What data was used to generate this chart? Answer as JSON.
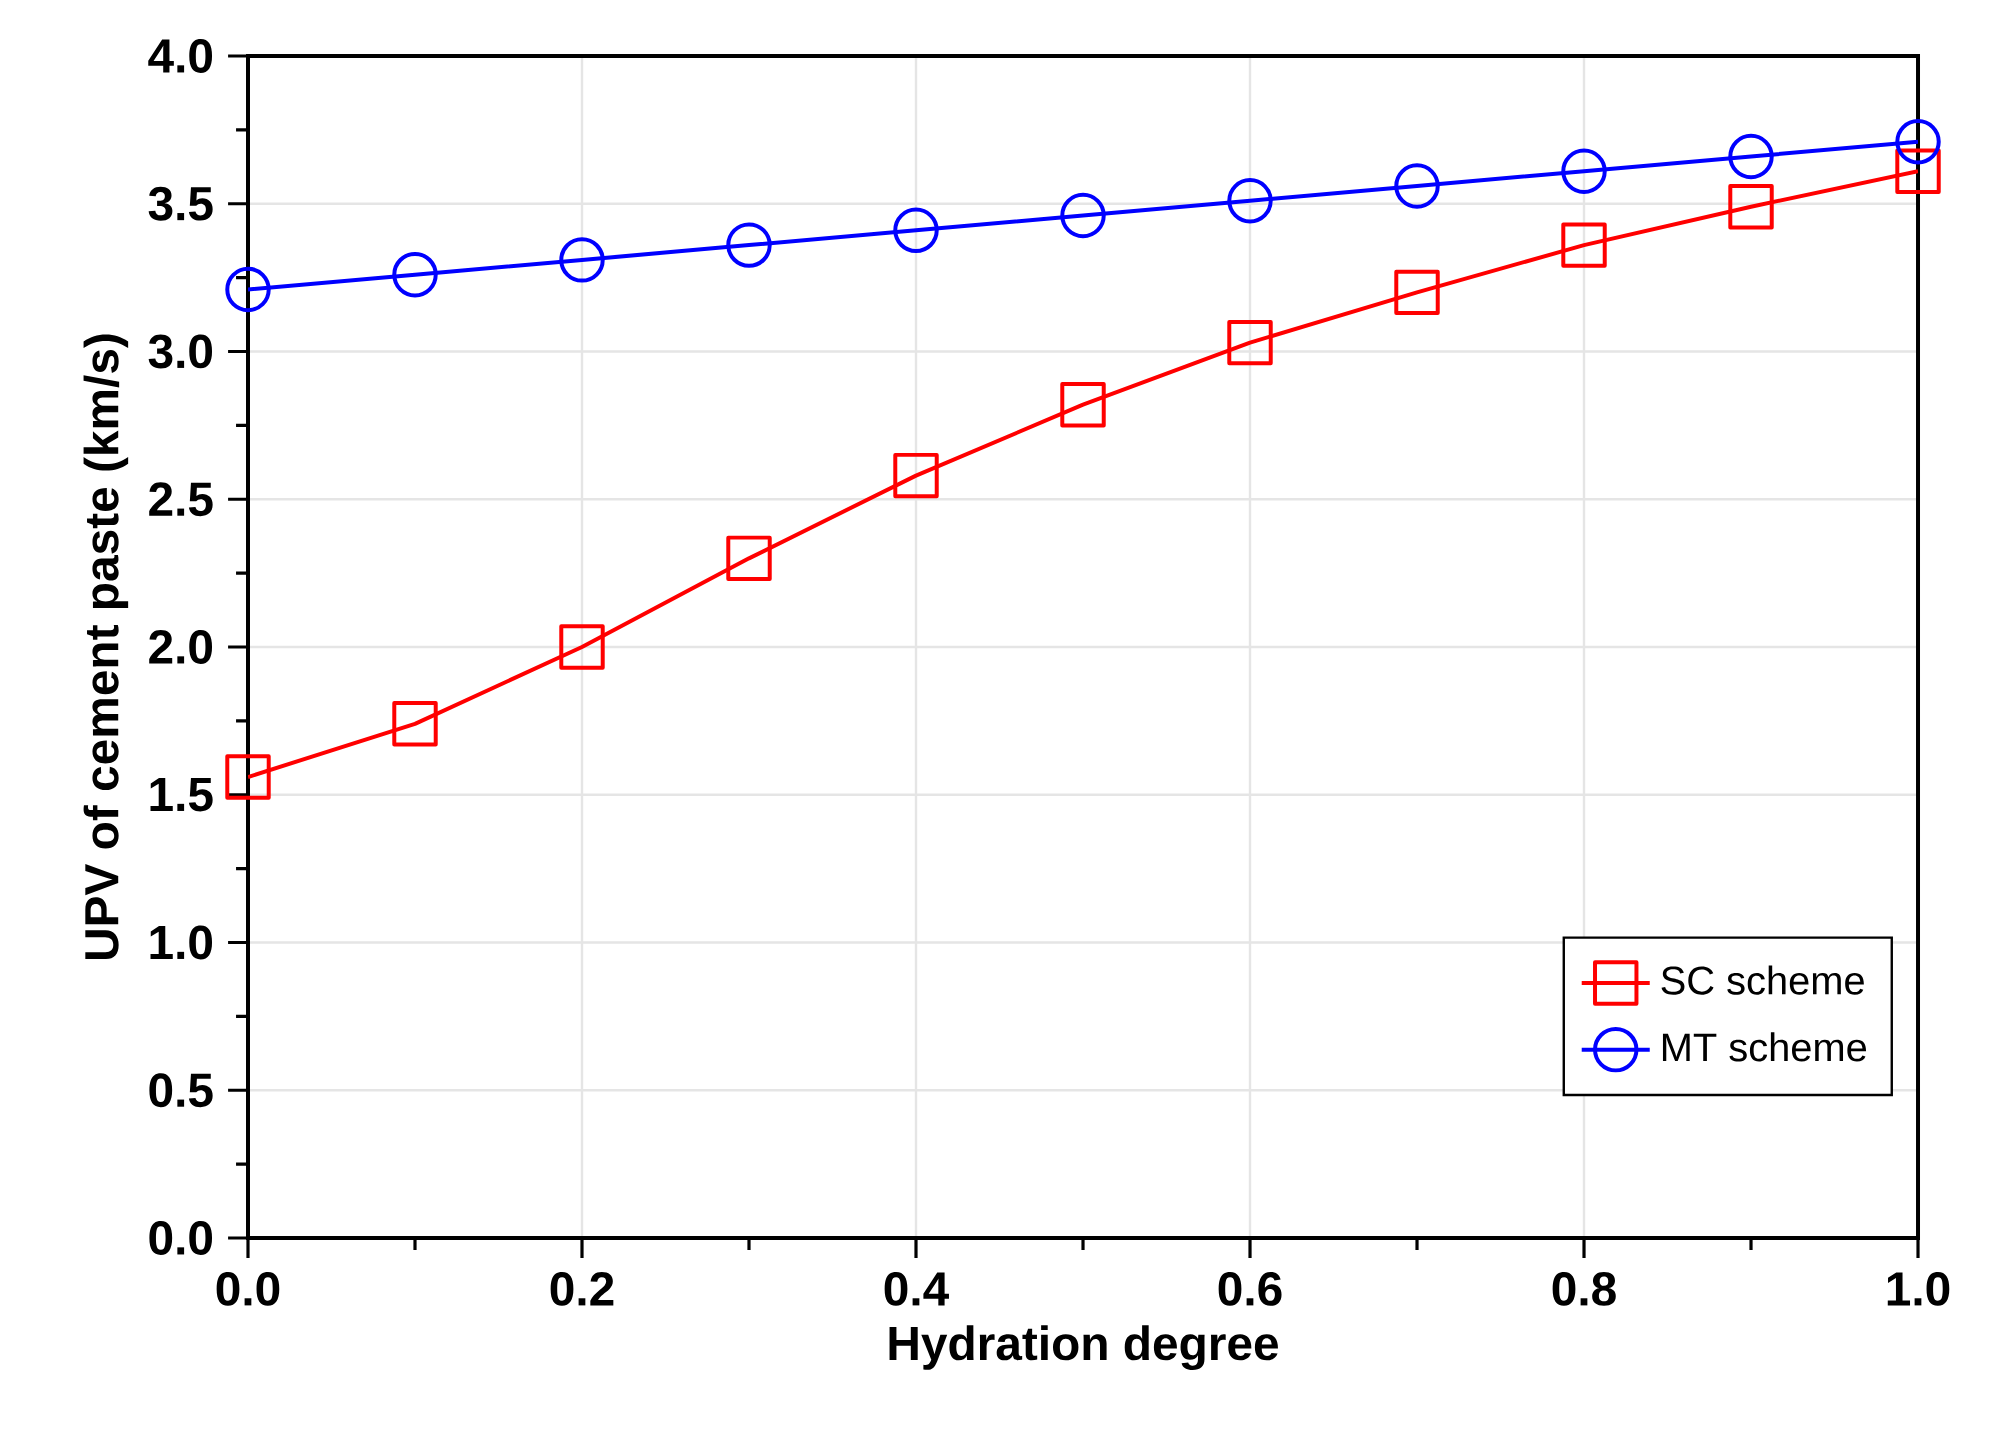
{
  "chart_data": {
    "type": "line",
    "xlabel": "Hydration degree",
    "ylabel": "UPV of cement paste (km/s)",
    "x": [
      0,
      0.1,
      0.2,
      0.3,
      0.4,
      0.5,
      0.6,
      0.7,
      0.8,
      0.9,
      1.0
    ],
    "series": [
      {
        "name": "SC scheme",
        "color": "#ff0000",
        "marker": "square",
        "values": [
          1.56,
          1.74,
          2.0,
          2.3,
          2.58,
          2.82,
          3.03,
          3.2,
          3.36,
          3.49,
          3.61
        ]
      },
      {
        "name": "MT scheme",
        "color": "#0000ff",
        "marker": "circle",
        "values": [
          3.21,
          3.26,
          3.31,
          3.36,
          3.41,
          3.46,
          3.51,
          3.56,
          3.61,
          3.66,
          3.71
        ]
      }
    ],
    "xlim": [
      0,
      1.0
    ],
    "ylim": [
      0,
      4.0
    ],
    "xticks": [
      {
        "value": 0,
        "label": "0.0"
      },
      {
        "value": 0.2,
        "label": "0.2"
      },
      {
        "value": 0.4,
        "label": "0.4"
      },
      {
        "value": 0.6,
        "label": "0.6"
      },
      {
        "value": 0.8,
        "label": "0.8"
      },
      {
        "value": 1.0,
        "label": "1.0"
      }
    ],
    "yticks": [
      {
        "value": 0,
        "label": "0.0"
      },
      {
        "value": 0.5,
        "label": "0.5"
      },
      {
        "value": 1.0,
        "label": "1.0"
      },
      {
        "value": 1.5,
        "label": "1.5"
      },
      {
        "value": 2.0,
        "label": "2.0"
      },
      {
        "value": 2.5,
        "label": "2.5"
      },
      {
        "value": 3.0,
        "label": "3.0"
      },
      {
        "value": 3.5,
        "label": "3.5"
      },
      {
        "value": 4.0,
        "label": "4.0"
      }
    ],
    "grid": true,
    "legend": "bottom right",
    "line_style": "solid"
  }
}
